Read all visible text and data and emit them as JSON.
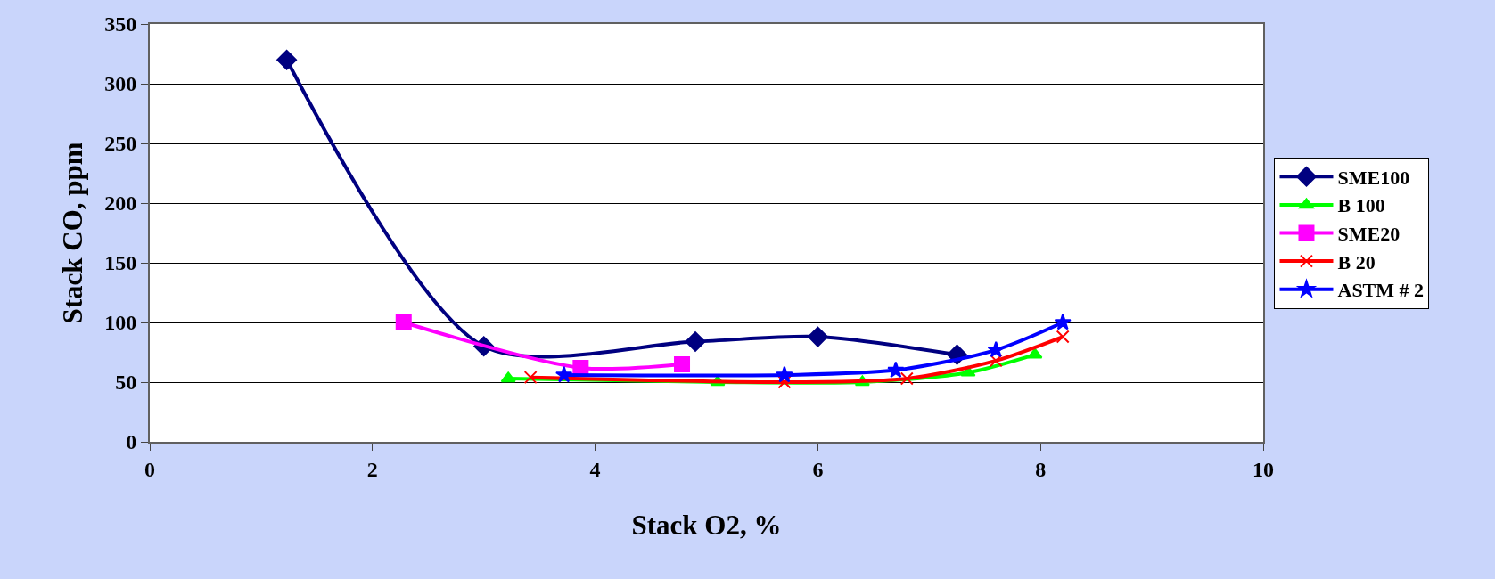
{
  "chart_data": {
    "type": "line",
    "xlabel": "Stack O2, %",
    "ylabel": "Stack CO, ppm",
    "xlim": [
      0,
      10
    ],
    "xticks": [
      0,
      2,
      4,
      6,
      8,
      10
    ],
    "ylim": [
      0,
      350
    ],
    "yticks": [
      0,
      50,
      100,
      150,
      200,
      250,
      300,
      350
    ],
    "grid": "y",
    "legend": "right",
    "series": [
      {
        "name": "SME100",
        "color": "#000080",
        "marker": "diamond",
        "x": [
          1.23,
          3.0,
          4.9,
          6.0,
          7.25
        ],
        "values": [
          320,
          80,
          84,
          88,
          73
        ]
      },
      {
        "name": "B 100",
        "color": "#00ff00",
        "marker": "triangle",
        "x": [
          3.22,
          5.1,
          6.4,
          7.35,
          7.95
        ],
        "values": [
          53,
          50,
          50,
          58,
          73
        ]
      },
      {
        "name": "SME20",
        "color": "#ff00ff",
        "marker": "square",
        "x": [
          2.28,
          3.87,
          4.78
        ],
        "values": [
          100,
          62,
          65
        ]
      },
      {
        "name": "B 20",
        "color": "#ff0000",
        "marker": "cross",
        "x": [
          3.42,
          5.7,
          6.8,
          7.6,
          8.2
        ],
        "values": [
          54,
          50,
          53,
          68,
          88
        ]
      },
      {
        "name": "ASTM # 2",
        "color": "#0000ff",
        "marker": "star",
        "x": [
          3.72,
          5.7,
          6.7,
          7.6,
          8.2
        ],
        "values": [
          56,
          56,
          60,
          77,
          100
        ]
      }
    ]
  }
}
